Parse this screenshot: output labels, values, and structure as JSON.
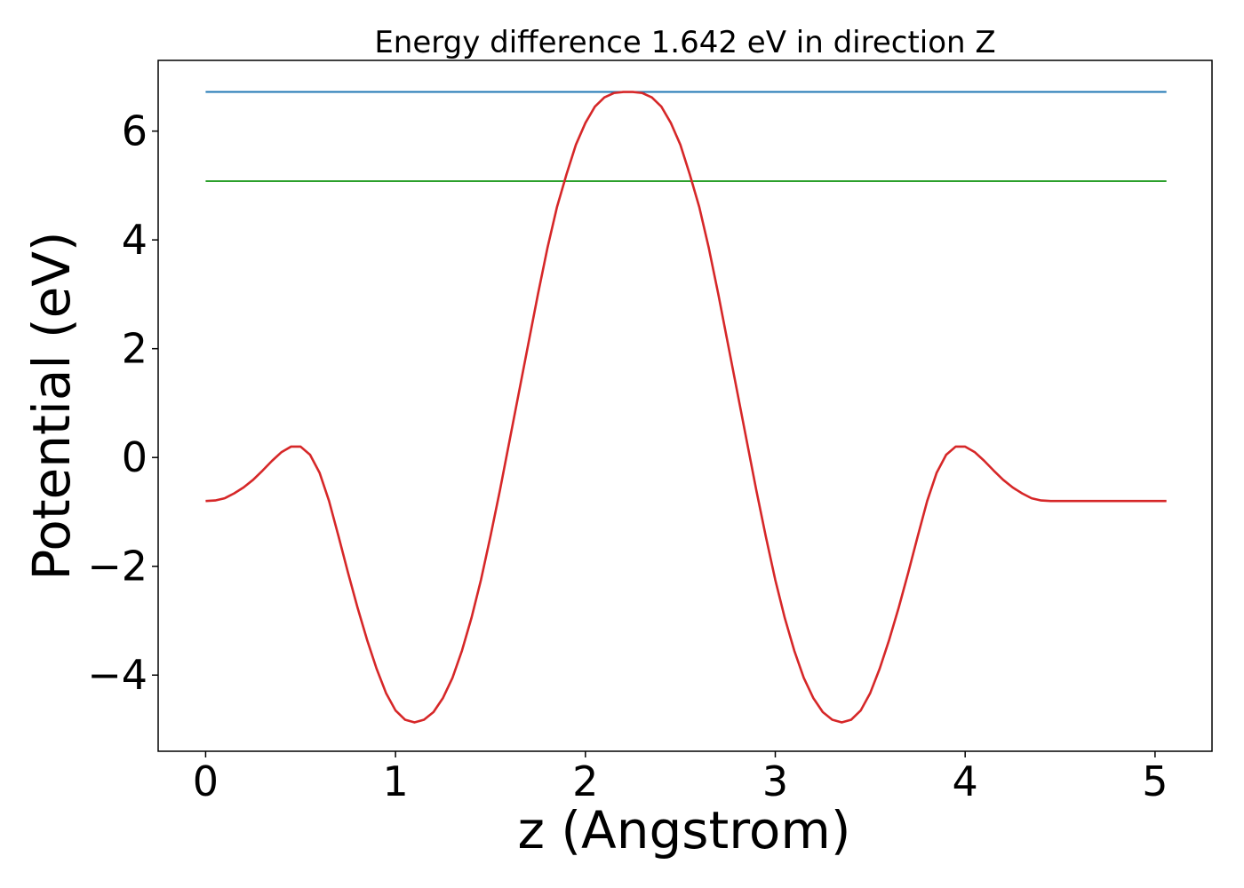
{
  "chart_data": {
    "type": "line",
    "title": "Energy difference 1.642 eV in direction Z",
    "xlabel": "z (Angstrom)",
    "ylabel": "Potential (eV)",
    "xlim": [
      -0.25,
      5.3
    ],
    "ylim": [
      -5.4,
      7.3
    ],
    "grid": false,
    "x_ticks": [
      0,
      1,
      2,
      3,
      4,
      5
    ],
    "x_tick_labels": [
      "0",
      "1",
      "2",
      "3",
      "4",
      "5"
    ],
    "y_ticks": [
      -4,
      -2,
      0,
      2,
      4,
      6
    ],
    "y_tick_labels": [
      "−4",
      "−2",
      "0",
      "2",
      "4",
      "6"
    ],
    "series": [
      {
        "color": "#1f77b4",
        "x": [
          0,
          5.06
        ],
        "y": [
          6.72,
          6.72
        ]
      },
      {
        "color": "#2ca02c",
        "x": [
          0,
          5.06
        ],
        "y": [
          5.08,
          5.08
        ]
      },
      {
        "color": "#d62728",
        "x": [
          0.0,
          0.05,
          0.1,
          0.15,
          0.2,
          0.25,
          0.3,
          0.35,
          0.4,
          0.45,
          0.5,
          0.55,
          0.6,
          0.65,
          0.7,
          0.75,
          0.8,
          0.85,
          0.9,
          0.95,
          1.0,
          1.05,
          1.1,
          1.15,
          1.2,
          1.25,
          1.3,
          1.35,
          1.4,
          1.45,
          1.5,
          1.55,
          1.6,
          1.65,
          1.7,
          1.75,
          1.8,
          1.85,
          1.9,
          1.95,
          2.0,
          2.05,
          2.1,
          2.15,
          2.2,
          2.25,
          2.3,
          2.35,
          2.4,
          2.45,
          2.5,
          2.55,
          2.6,
          2.65,
          2.7,
          2.75,
          2.8,
          2.85,
          2.9,
          2.95,
          3.0,
          3.05,
          3.1,
          3.15,
          3.2,
          3.25,
          3.3,
          3.35,
          3.4,
          3.45,
          3.5,
          3.55,
          3.6,
          3.65,
          3.7,
          3.75,
          3.8,
          3.85,
          3.9,
          3.95,
          4.0,
          4.05,
          4.1,
          4.15,
          4.2,
          4.25,
          4.3,
          4.35,
          4.4,
          4.45,
          4.5,
          4.55,
          4.6,
          4.65,
          4.7,
          4.75,
          4.8,
          4.85,
          4.9,
          4.95,
          5.0,
          5.06
        ],
        "y": [
          -0.8,
          -0.79,
          -0.75,
          -0.66,
          -0.55,
          -0.41,
          -0.24,
          -0.06,
          0.1,
          0.2,
          0.2,
          0.05,
          -0.28,
          -0.8,
          -1.45,
          -2.12,
          -2.76,
          -3.35,
          -3.88,
          -4.33,
          -4.65,
          -4.82,
          -4.87,
          -4.82,
          -4.68,
          -4.42,
          -4.05,
          -3.55,
          -2.95,
          -2.25,
          -1.45,
          -0.6,
          0.3,
          1.2,
          2.1,
          3.0,
          3.85,
          4.6,
          5.2,
          5.75,
          6.15,
          6.45,
          6.62,
          6.7,
          6.72,
          6.72,
          6.7,
          6.62,
          6.45,
          6.15,
          5.75,
          5.2,
          4.6,
          3.85,
          3.0,
          2.1,
          1.2,
          0.3,
          -0.6,
          -1.45,
          -2.25,
          -2.95,
          -3.55,
          -4.05,
          -4.42,
          -4.68,
          -4.82,
          -4.87,
          -4.82,
          -4.65,
          -4.33,
          -3.88,
          -3.35,
          -2.76,
          -2.12,
          -1.45,
          -0.8,
          -0.28,
          0.05,
          0.2,
          0.2,
          0.1,
          -0.06,
          -0.24,
          -0.41,
          -0.55,
          -0.66,
          -0.75,
          -0.79,
          -0.8,
          -0.8,
          -0.8,
          -0.8,
          -0.8,
          -0.8,
          -0.8,
          -0.8,
          -0.8,
          -0.8,
          -0.8,
          -0.8,
          -0.8
        ]
      }
    ]
  }
}
